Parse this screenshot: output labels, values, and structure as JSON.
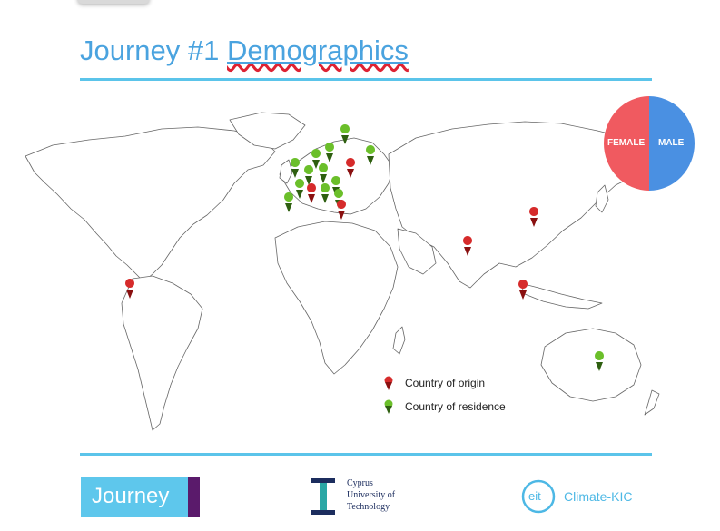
{
  "slide": {
    "title_part1": "Journey #1 ",
    "title_part2": "Demographics"
  },
  "pie": {
    "female_label": "FEMALE",
    "male_label": "MALE",
    "female_color": "#f05a60",
    "male_color": "#4a90e2"
  },
  "legend": {
    "origin_label": "Country of origin",
    "residence_label": "Country of residence",
    "origin_color": "#d62b2b",
    "residence_color": "#6bbf2a"
  },
  "logos": {
    "journey_text": "Journey",
    "cut_line1": "Cyprus",
    "cut_line2": "University of",
    "cut_line3": "Technology",
    "eit_text": "eit",
    "climate_text": "Climate-KIC"
  }
}
